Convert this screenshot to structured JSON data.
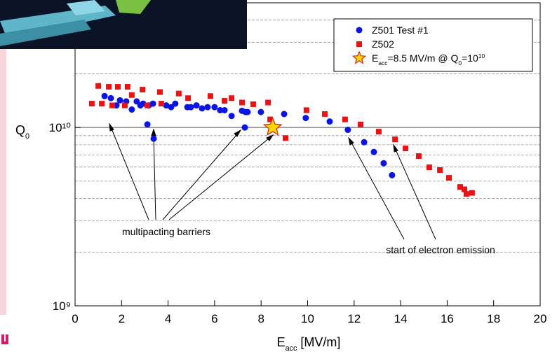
{
  "chart_data": {
    "type": "scatter",
    "x_label": [
      "E",
      "acc",
      " [MV/m]"
    ],
    "y_label": [
      "Q",
      "0"
    ],
    "log_y": true,
    "grid": true,
    "xlim": [
      0,
      20
    ],
    "xticks": [
      0,
      2,
      4,
      6,
      8,
      10,
      12,
      14,
      16,
      18,
      20
    ],
    "ylim": [
      1000000000,
      50000000000
    ],
    "yticks": [
      {
        "value": 1000000000,
        "label": "10⁹"
      },
      {
        "value": 10000000000,
        "label": "10¹⁰"
      }
    ],
    "yminor": [
      2000000000,
      3000000000,
      4000000000,
      5000000000,
      6000000000,
      7000000000,
      8000000000,
      9000000000,
      20000000000,
      30000000000,
      40000000000
    ],
    "legend": "upper right",
    "series": [
      {
        "name": "Z501 Test #1",
        "color": "#0a14e6",
        "marker": "circle",
        "x": [
          1.27,
          1.54,
          1.78,
          1.93,
          2.2,
          2.44,
          2.65,
          2.81,
          2.93,
          3.11,
          3.17,
          3.35,
          3.38,
          3.92,
          4.13,
          4.31,
          4.83,
          4.98,
          5.22,
          5.46,
          5.7,
          6.0,
          6.24,
          6.43,
          6.73,
          7.18,
          7.33,
          7.3,
          7.42,
          7.99,
          8.99,
          9.92,
          10.95,
          11.73,
          12.43,
          12.85,
          13.27,
          13.63
        ],
        "values": [
          15000000000,
          14600000000,
          13300000000,
          14200000000,
          14000000000,
          12600000000,
          14000000000,
          13300000000,
          13600000000,
          10400000000,
          13300000000,
          13600000000,
          8650000000,
          13300000000,
          13000000000,
          13600000000,
          13000000000,
          13000000000,
          13300000000,
          12800000000,
          13000000000,
          13000000000,
          12500000000,
          12500000000,
          11600000000,
          12400000000,
          12200000000,
          10000000000,
          12200000000,
          12200000000,
          11900000000,
          11300000000,
          10800000000,
          9700000000,
          8270000000,
          7290000000,
          6300000000,
          5400000000
        ]
      },
      {
        "name": "Z502",
        "color": "#ee1111",
        "marker": "square",
        "x": [
          0.72,
          1.0,
          1.15,
          1.45,
          1.6,
          1.84,
          2.14,
          2.26,
          2.44,
          2.9,
          3.11,
          3.65,
          3.71,
          4.46,
          4.86,
          5.82,
          6.43,
          6.73,
          7.18,
          7.66,
          8.3,
          8.39,
          9.05,
          9.95,
          10.74,
          11.61,
          12.28,
          13.06,
          13.76,
          14.21,
          14.78,
          15.23,
          15.69,
          16.08,
          16.56,
          16.74,
          16.83,
          17.07
        ],
        "values": [
          13600000000,
          17100000000,
          13600000000,
          16900000000,
          13300000000,
          16900000000,
          13300000000,
          16900000000,
          15200000000,
          16300000000,
          13300000000,
          15800000000,
          13600000000,
          15500000000,
          14600000000,
          15000000000,
          14100000000,
          14600000000,
          13800000000,
          13500000000,
          13800000000,
          11100000000,
          8730000000,
          12500000000,
          11900000000,
          11100000000,
          10400000000,
          9470000000,
          8580000000,
          7630000000,
          6910000000,
          5980000000,
          5770000000,
          5220000000,
          4640000000,
          4500000000,
          4240000000,
          4300000000
        ]
      },
      {
        "name": [
          "E",
          "acc",
          "=8.5 MV/m @ Q",
          "0",
          "=10",
          "10"
        ],
        "color": "#ffd700",
        "marker": "star",
        "x": [
          8.5
        ],
        "values": [
          10000000000
        ]
      }
    ],
    "annotations": [
      {
        "text": "multipacting barriers"
      },
      {
        "text": "start of electron emission"
      }
    ]
  }
}
